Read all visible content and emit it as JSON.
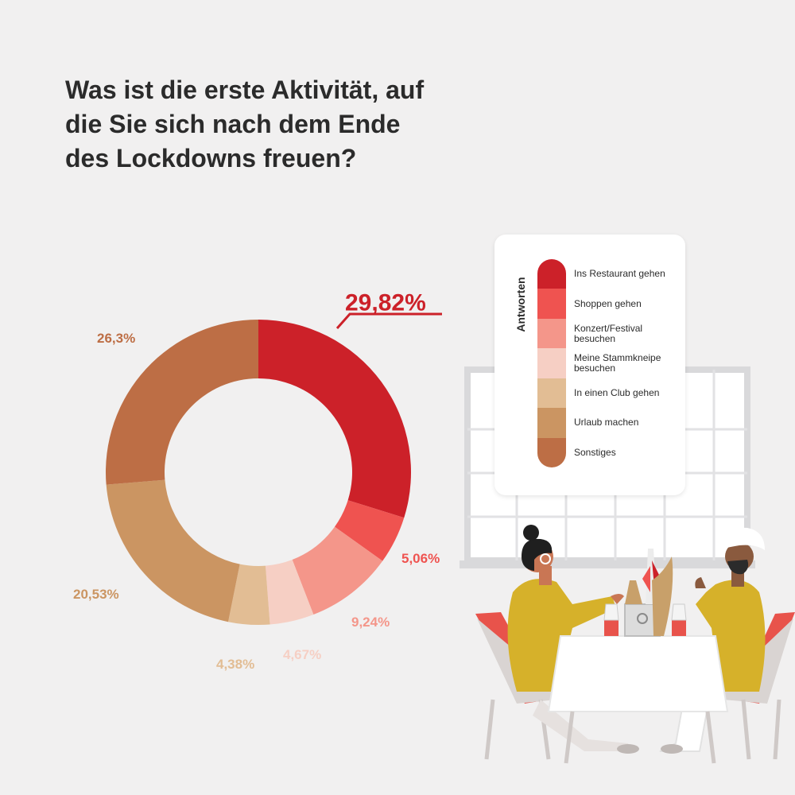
{
  "title_lines": [
    "Was ist die erste Aktivität, auf",
    "die Sie sich nach dem Ende",
    "des Lockdowns freuen?"
  ],
  "legend": {
    "heading": "Antworten"
  },
  "chart_data": {
    "type": "pie",
    "donut": true,
    "title": "Was ist die erste Aktivität, auf die Sie sich nach dem Ende des Lockdowns freuen?",
    "legend_title": "Antworten",
    "legend_position": "right",
    "slices": [
      {
        "label": "Ins Restaurant gehen",
        "value": 29.82,
        "display": "29,82%",
        "color": "#cc2129"
      },
      {
        "label": "Shoppen gehen",
        "value": 5.06,
        "display": "5,06%",
        "color": "#ef5350"
      },
      {
        "label": "Konzert/Festival besuchen",
        "value": 9.24,
        "display": "9,24%",
        "color": "#f4968a"
      },
      {
        "label": "Meine Stammkneipe besuchen",
        "value": 4.67,
        "display": "4,67%",
        "color": "#f6cfc4"
      },
      {
        "label": "In einen Club gehen",
        "value": 4.38,
        "display": "4,38%",
        "color": "#e2bd94"
      },
      {
        "label": "Urlaub machen",
        "value": 20.53,
        "display": "20,53%",
        "color": "#cb9562"
      },
      {
        "label": "Sonstiges",
        "value": 26.3,
        "display": "26,3%",
        "color": "#bd6e45"
      }
    ],
    "label_colors": [
      "#cc2129",
      "#ef5350",
      "#f4968a",
      "#f6cfc4",
      "#e2bd94",
      "#cb9562",
      "#bd6e45"
    ]
  }
}
